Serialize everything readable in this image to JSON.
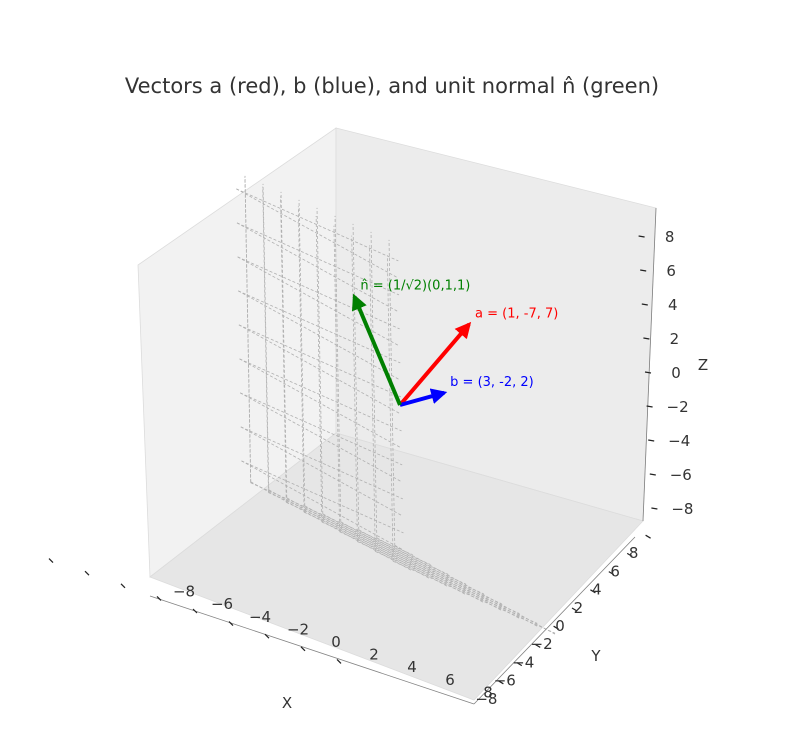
{
  "chart_data": {
    "type": "vector3d",
    "title": "Vectors a (red), b (blue), and unit normal n̂ (green)",
    "xlabel": "X",
    "ylabel": "Y",
    "zlabel": "Z",
    "xlim": [
      -9,
      9
    ],
    "ylim": [
      -9,
      9
    ],
    "zlim": [
      -9,
      9
    ],
    "xticks": [
      "−8",
      "−6",
      "−4",
      "−2",
      "0",
      "2",
      "4",
      "6",
      "8"
    ],
    "yticks": [
      "−8",
      "−6",
      "−4",
      "−2",
      "0",
      "2",
      "4",
      "6",
      "8"
    ],
    "zticks": [
      "−8",
      "−6",
      "−4",
      "−2",
      "0",
      "2",
      "4",
      "6",
      "8"
    ],
    "grid": true,
    "origin": [
      0,
      0,
      0
    ],
    "vectors": [
      {
        "label": "a = (1, -7, 7)",
        "components": [
          1,
          -7,
          7
        ],
        "color": "#ff0000"
      },
      {
        "label": "b = (3, -2, 2)",
        "components": [
          3,
          -2,
          2
        ],
        "color": "#0000ff"
      },
      {
        "label": "n̂ = (1/√2)(0,1,1)",
        "components": [
          0,
          0.707,
          0.707
        ],
        "display_length": 7,
        "color": "#008000"
      }
    ]
  }
}
